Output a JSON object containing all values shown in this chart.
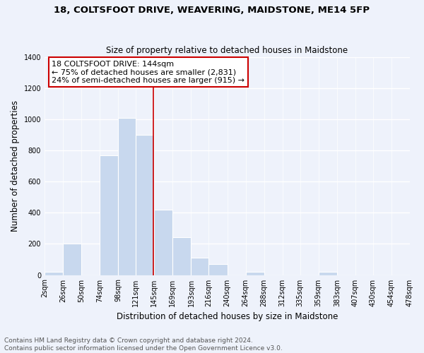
{
  "title": "18, COLTSFOOT DRIVE, WEAVERING, MAIDSTONE, ME14 5FP",
  "subtitle": "Size of property relative to detached houses in Maidstone",
  "xlabel": "Distribution of detached houses by size in Maidstone",
  "ylabel": "Number of detached properties",
  "footer_line1": "Contains HM Land Registry data © Crown copyright and database right 2024.",
  "footer_line2": "Contains public sector information licensed under the Open Government Licence v3.0.",
  "bar_edges": [
    2,
    26,
    50,
    74,
    98,
    121,
    145,
    169,
    193,
    216,
    240,
    264,
    288,
    312,
    335,
    359,
    383,
    407,
    430,
    454,
    478
  ],
  "bar_heights": [
    20,
    200,
    0,
    770,
    1010,
    900,
    420,
    245,
    110,
    70,
    0,
    20,
    0,
    0,
    0,
    20,
    0,
    0,
    0,
    0
  ],
  "bar_color": "#c8d8ee",
  "bar_edge_color": "#c8d8ee",
  "vline_color": "#cc0000",
  "vline_x": 144,
  "annotation_text_line1": "18 COLTSFOOT DRIVE: 144sqm",
  "annotation_text_line2": "← 75% of detached houses are smaller (2,831)",
  "annotation_text_line3": "24% of semi-detached houses are larger (915) →",
  "xlim": [
    2,
    478
  ],
  "ylim": [
    0,
    1400
  ],
  "yticks": [
    0,
    200,
    400,
    600,
    800,
    1000,
    1200,
    1400
  ],
  "xtick_labels": [
    "2sqm",
    "26sqm",
    "50sqm",
    "74sqm",
    "98sqm",
    "121sqm",
    "145sqm",
    "169sqm",
    "193sqm",
    "216sqm",
    "240sqm",
    "264sqm",
    "288sqm",
    "312sqm",
    "335sqm",
    "359sqm",
    "383sqm",
    "407sqm",
    "430sqm",
    "454sqm",
    "478sqm"
  ],
  "xtick_positions": [
    2,
    26,
    50,
    74,
    98,
    121,
    145,
    169,
    193,
    216,
    240,
    264,
    288,
    312,
    335,
    359,
    383,
    407,
    430,
    454,
    478
  ],
  "title_fontsize": 9.5,
  "subtitle_fontsize": 8.5,
  "axis_label_fontsize": 8.5,
  "tick_fontsize": 7,
  "annotation_fontsize": 8,
  "footer_fontsize": 6.5,
  "bg_color": "#eef2fb",
  "plot_bg_color": "#eef2fb",
  "grid_color": "#ffffff",
  "box_edge_color": "#cc0000"
}
